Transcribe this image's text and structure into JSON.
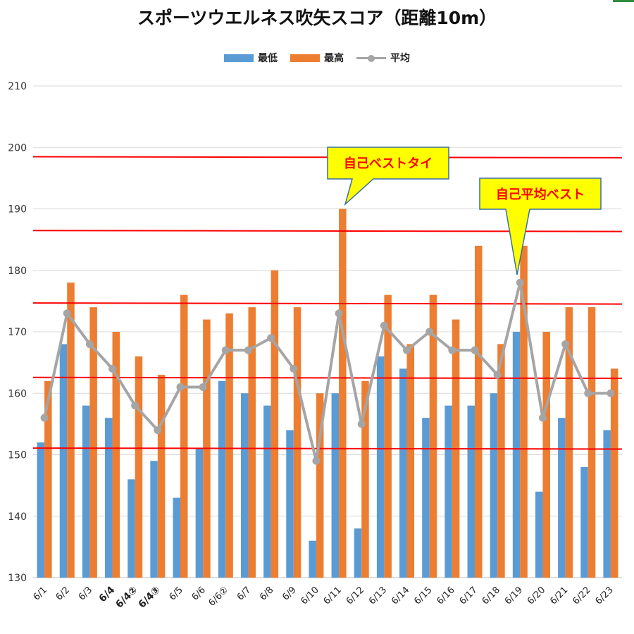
{
  "title": "スポーツウエルネス吹矢スコア（距離10m）",
  "legend": {
    "items": [
      {
        "label": "最低",
        "color": "#5b9bd5",
        "kind": "bar"
      },
      {
        "label": "最高",
        "color": "#ed7d31",
        "kind": "bar"
      },
      {
        "label": "平均",
        "color": "#a5a5a5",
        "kind": "line"
      }
    ]
  },
  "annotations": {
    "self_best_tie": "自己ベストタイ",
    "self_avg_best": "自己平均ベスト"
  },
  "chart_data": {
    "type": "bar",
    "categories": [
      "6/1",
      "6/2",
      "6/3",
      "6/4",
      "6/4②",
      "6/4③",
      "6/5",
      "6/6",
      "6/6②",
      "6/7",
      "6/8",
      "6/9",
      "6/10",
      "6/11",
      "6/12",
      "6/13",
      "6/14",
      "6/15",
      "6/16",
      "6/17",
      "6/18",
      "6/19",
      "6/20",
      "6/21",
      "6/22",
      "6/23"
    ],
    "series": [
      {
        "name": "最低",
        "type": "bar",
        "color": "#5b9bd5",
        "values": [
          152,
          168,
          158,
          156,
          146,
          149,
          143,
          151,
          162,
          160,
          158,
          154,
          136,
          160,
          138,
          166,
          164,
          156,
          158,
          158,
          160,
          170,
          144,
          156,
          148,
          154
        ]
      },
      {
        "name": "最高",
        "type": "bar",
        "color": "#ed7d31",
        "values": [
          162,
          178,
          174,
          170,
          166,
          163,
          176,
          172,
          173,
          174,
          180,
          174,
          160,
          190,
          162,
          176,
          168,
          176,
          172,
          184,
          168,
          184,
          170,
          174,
          174,
          164
        ]
      },
      {
        "name": "平均",
        "type": "line",
        "color": "#a5a5a5",
        "values": [
          156,
          173,
          168,
          164,
          158,
          154,
          161,
          161,
          167,
          167,
          169,
          164,
          149,
          173,
          155,
          171,
          167,
          170,
          167,
          167,
          163,
          178,
          156,
          168,
          160,
          160
        ]
      }
    ],
    "ylim": [
      130,
      210
    ],
    "yticks": [
      130,
      140,
      150,
      160,
      170,
      180,
      190,
      200,
      210
    ],
    "bold_xticks": [
      "6/4",
      "6/4②",
      "6/4③"
    ],
    "reference_lines": {
      "color": "#ff0000",
      "levels": [
        151,
        162.5,
        174.6,
        186.4,
        198.4
      ]
    },
    "grid": true,
    "legend_position": "top"
  }
}
